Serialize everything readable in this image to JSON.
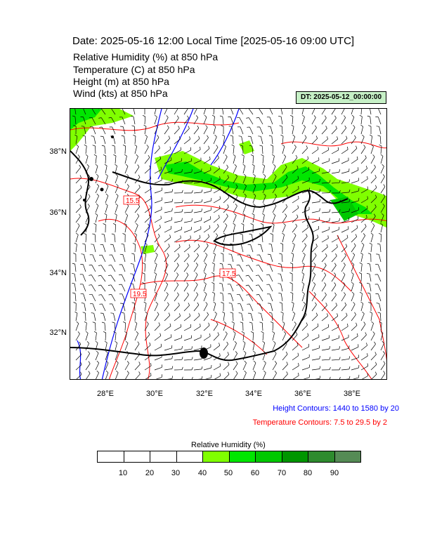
{
  "title": "Date: 2025-05-16  12:00 Local Time [2025-05-16  09:00 UTC]",
  "variables": [
    "Relative Humidity   (%)     at    850 hPa",
    "Temperature   (C)     at    850 hPa",
    "Height   (m)     at    850 hPa",
    "Wind   (kts)     at    850 hPa"
  ],
  "dt_label": "DT: 2025-05-12_00:00:00",
  "map": {
    "lat_labels": [
      "38°N",
      "36°N",
      "34°N",
      "32°N"
    ],
    "lon_labels": [
      "28°E",
      "30°E",
      "32°E",
      "34°E",
      "36°E",
      "38°E"
    ],
    "contour_labels": [
      "15.5",
      "17.5",
      "19.5"
    ],
    "colors": {
      "height_contour": "#0000ff",
      "temperature_contour": "#ff0000",
      "coastline": "#000000",
      "rh_40_50": "#80ff00",
      "rh_50_60": "#00e600"
    }
  },
  "height_contours_note": "Height Contours: 1440 to 1580 by 20",
  "temperature_contours_note": "Temperature Contours: 7.5 to 29.5 by 2",
  "colorbar": {
    "title": "Relative Humidity  (%)",
    "ticks": [
      "10",
      "20",
      "30",
      "40",
      "50",
      "60",
      "70",
      "80",
      "90"
    ],
    "colors": [
      "#ffffff",
      "#ffffff",
      "#ffffff",
      "#ffffff",
      "#80ff00",
      "#00e600",
      "#00c800",
      "#009600",
      "#2e8b2e",
      "#558b55"
    ]
  }
}
